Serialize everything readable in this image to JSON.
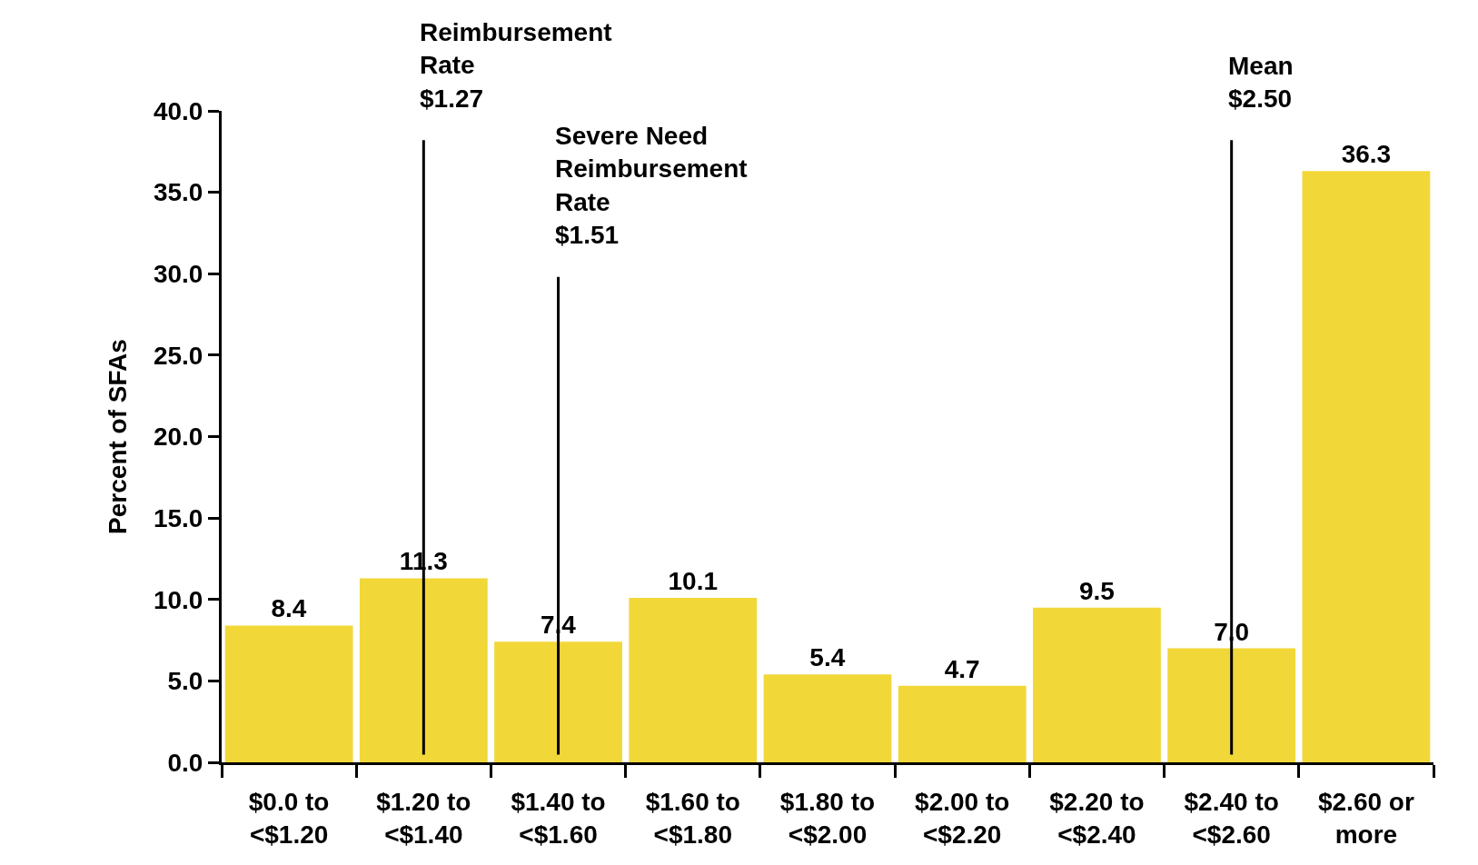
{
  "chart_data": {
    "type": "bar",
    "categories": [
      "$0.0 to\n<$1.20",
      "$1.20 to\n<$1.40",
      "$1.40 to\n<$1.60",
      "$1.60 to\n<$1.80",
      "$1.80 to\n<$2.00",
      "$2.00 to\n<$2.20",
      "$2.20 to\n<$2.40",
      "$2.40 to\n<$2.60",
      "$2.60 or\nmore"
    ],
    "values": [
      8.4,
      11.3,
      7.4,
      10.1,
      5.4,
      4.7,
      9.5,
      7.0,
      36.3
    ],
    "value_labels": [
      "8.4",
      "11.3",
      "7.4",
      "10.1",
      "5.4",
      "4.7",
      "9.5",
      "7.0",
      "36.3"
    ],
    "color": "#f2d738",
    "ylabel": "Percent of SFAs",
    "ylim": [
      0,
      40
    ],
    "yticks": [
      {
        "value": 0,
        "label": "0.0"
      },
      {
        "value": 5,
        "label": "5.0"
      },
      {
        "value": 10,
        "label": "10.0"
      },
      {
        "value": 15,
        "label": "15.0"
      },
      {
        "value": 20,
        "label": "20.0"
      },
      {
        "value": 25,
        "label": "25.0"
      },
      {
        "value": 30,
        "label": "30.0"
      },
      {
        "value": 35,
        "label": "35.0"
      },
      {
        "value": 40,
        "label": "40.0"
      }
    ],
    "ref_lines": [
      {
        "axis": "x",
        "value": "$1.20 to\n<$1.40",
        "label": "Reimbursement\nRate\n$1.27",
        "color": "#000000"
      },
      {
        "axis": "x",
        "value": "$1.40 to\n<$1.60",
        "label": "Severe Need\nReimbursement\nRate\n$1.51",
        "color": "#000000"
      },
      {
        "axis": "x",
        "value": "$2.40 to\n<$2.60",
        "label": "Mean\n$2.50",
        "color": "#000000"
      }
    ]
  }
}
